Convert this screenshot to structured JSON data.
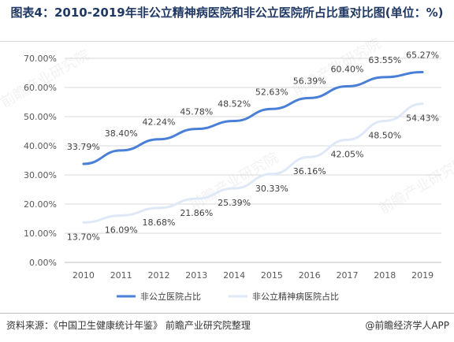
{
  "title": "图表4：2010-2019年非公立精神病医院和非公立医院所占比重对比图(单位：%)",
  "source": "资料来源：《中国卫生健康统计年鉴》 前瞻产业研究院整理",
  "brand": "@前瞻经济学人APP",
  "watermark": "前瞻产业研究院",
  "colors": {
    "series1": "#4a7fd8",
    "series2": "#dfe8f7",
    "grid": "#d9d9d9",
    "axis": "#bfbfbf"
  },
  "chart_data": {
    "type": "line",
    "title": "图表4：2010-2019年非公立精神病医院和非公立医院所占比重对比图(单位：%)",
    "x": [
      "2010",
      "2011",
      "2012",
      "2013",
      "2014",
      "2015",
      "2016",
      "2017",
      "2018",
      "2019"
    ],
    "ylim": [
      0,
      70
    ],
    "yticks": [
      "0.00%",
      "10.00%",
      "20.00%",
      "30.00%",
      "40.00%",
      "50.00%",
      "60.00%",
      "70.00%"
    ],
    "grid": true,
    "legend": "bottom",
    "series": [
      {
        "name": "非公立医院占比",
        "values": [
          33.79,
          38.4,
          42.24,
          45.78,
          48.52,
          52.63,
          56.39,
          60.4,
          63.55,
          65.27
        ],
        "labels": [
          "33.79%",
          "38.40%",
          "42.24%",
          "45.78%",
          "48.52%",
          "52.63%",
          "56.39%",
          "60.40%",
          "63.55%",
          "65.27%"
        ]
      },
      {
        "name": "非公立精神病医院占比",
        "values": [
          13.7,
          16.09,
          18.68,
          21.86,
          25.39,
          30.33,
          36.16,
          42.05,
          48.5,
          54.43
        ],
        "labels": [
          "13.70%",
          "16.09%",
          "18.68%",
          "21.86%",
          "25.39%",
          "30.33%",
          "36.16%",
          "42.05%",
          "48.50%",
          "54.43%"
        ]
      }
    ]
  }
}
